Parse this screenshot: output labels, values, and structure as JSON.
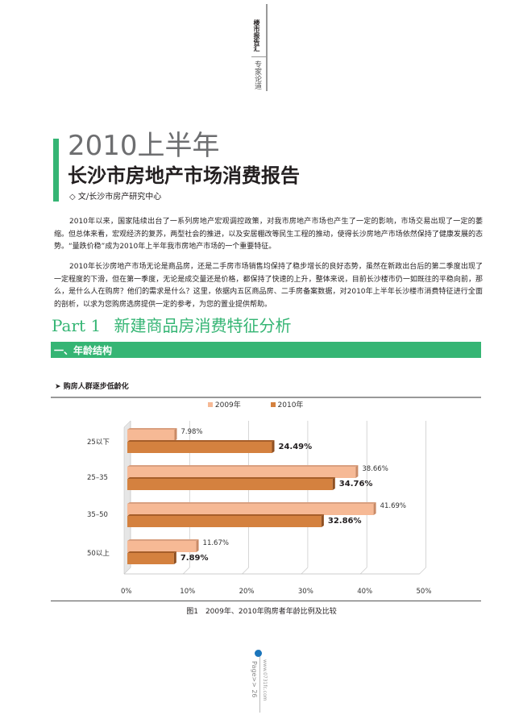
{
  "header": {
    "section": "楼市报告汇",
    "column": "专家论道"
  },
  "title": {
    "line1": "2010上半年",
    "line2": "长沙市房地产市场消费报告",
    "author": "◇ 文/长沙市房产研究中心"
  },
  "paragraphs": [
    "2010年以来，国家陆续出台了一系列房地产宏观调控政策，对我市房地产市场也产生了一定的影响，市场交易出现了一定的萎缩。但总体来看，宏观经济的复苏，两型社会的推进，以及安居棚改等民生工程的推动，使得长沙房地产市场依然保持了健康发展的态势。“量跌价稳”成为2010年上半年我市房地产市场的一个重要特征。",
    "2010年长沙房地产市场无论是商品房，还是二手房市场销售均保持了稳步增长的良好态势，虽然在新政出台后的第二季度出现了一定程度的下滑，但在第一季度，无论是成交量还是价格，都保持了快速的上升，整体来说，目前长沙楼市仍一如既往的平稳向前，那么，是什么人在购房？他们的需求是什么？这里，依据内五区商品房、二手房备案数据，对2010年上半年长沙楼市消费特征进行全面的剖析，以求为您购房选房提供一定的参考，为您的置业提供帮助。"
  ],
  "part": {
    "label": "Part 1",
    "title": "新建商品房消费特征分析"
  },
  "section_band": "一、年龄结构",
  "subheading": "购房人群逐步低龄化",
  "chart_data": {
    "type": "bar",
    "orientation": "horizontal",
    "categories": [
      "25以下",
      "25–35",
      "35–50",
      "50以上"
    ],
    "series": [
      {
        "name": "2009年",
        "values": [
          7.98,
          38.66,
          41.69,
          11.67
        ],
        "labels": [
          "7.98%",
          "38.66%",
          "41.69%",
          "11.67%"
        ],
        "color": "#f6b995"
      },
      {
        "name": "2010年",
        "values": [
          24.49,
          34.76,
          32.86,
          7.89
        ],
        "labels": [
          "24.49%",
          "34.76%",
          "32.86%",
          "7.89%"
        ],
        "color": "#d4813f"
      }
    ],
    "xlim": [
      0,
      50
    ],
    "xticks": [
      "0%",
      "10%",
      "20%",
      "30%",
      "40%",
      "50%"
    ],
    "legend": "top-center",
    "grid": true,
    "caption": "图1　2009年、2010年购房者年龄比例及比较"
  },
  "footer": {
    "page": "Page>> 26",
    "site": "www.0731fc.com"
  },
  "colors": {
    "accent": "#35b574",
    "gray_title": "#6d6e70"
  }
}
